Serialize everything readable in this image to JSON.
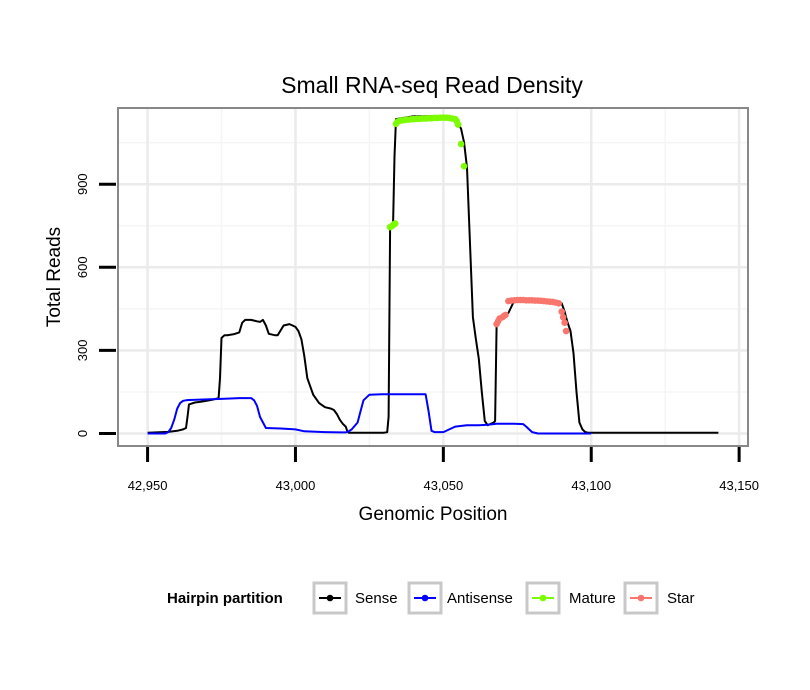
{
  "chart_data": {
    "type": "line",
    "title": "Small RNA-seq Read Density",
    "xlabel": "Genomic Position",
    "ylabel": "Total Reads",
    "xlim": [
      42940,
      43153
    ],
    "ylim": [
      -45,
      1175
    ],
    "xticks": [
      42950,
      43000,
      43050,
      43100,
      43150
    ],
    "xtick_labels": [
      "42,950",
      "43,000",
      "43,050",
      "43,100",
      "43,150"
    ],
    "yticks": [
      0,
      300,
      600,
      900
    ],
    "ytick_labels": [
      "0",
      "300",
      "600",
      "900"
    ],
    "grid": true,
    "legend": {
      "title": "Hairpin partition",
      "position": "bottom",
      "entries": [
        "Sense",
        "Antisense",
        "Mature",
        "Star"
      ]
    },
    "colors": {
      "Sense": "#000000",
      "Antisense": "#0000ff",
      "Mature": "#7cfc00",
      "Star": "#f8766d",
      "panel_border": "#888888",
      "grid": "#ebebeb"
    },
    "series": [
      {
        "name": "Sense",
        "type": "line",
        "x": [
          42950,
          42953,
          42957,
          42960,
          42962,
          42963,
          42963.5,
          42964,
          42966,
          42968,
          42970,
          42972,
          42974,
          42974.5,
          42975,
          42976,
          42977,
          42979,
          42981,
          42982,
          42983,
          42985,
          42987,
          42988,
          42989,
          42990,
          42991,
          42993,
          42994,
          42996,
          42998,
          42999,
          43000,
          43001,
          43002,
          43003,
          43004,
          43006,
          43008,
          43010,
          43012,
          43013,
          43014,
          43015,
          43016,
          43017,
          43017.5,
          43018,
          43020,
          43025,
          43030,
          43031,
          43031.5,
          43032,
          43032.5,
          43033,
          43033.5,
          43034,
          43040,
          43045,
          43050,
          43054,
          43056,
          43057,
          43058,
          43060,
          43061,
          43062,
          43063,
          43064,
          43065,
          43067,
          43067.5,
          43068,
          43070,
          43072,
          43074,
          43080,
          43085,
          43090,
          43091,
          43092,
          43093,
          43094,
          43095,
          43096,
          43097,
          43098,
          43099,
          43100,
          43110,
          43120,
          43130,
          43143
        ],
        "y": [
          3,
          4,
          6,
          10,
          15,
          20,
          60,
          105,
          112,
          115,
          118,
          122,
          128,
          200,
          345,
          355,
          355,
          358,
          365,
          400,
          410,
          410,
          405,
          403,
          410,
          390,
          360,
          355,
          355,
          390,
          395,
          390,
          385,
          370,
          340,
          280,
          200,
          140,
          110,
          95,
          90,
          85,
          70,
          50,
          35,
          25,
          10,
          3,
          3,
          3,
          3,
          5,
          60,
          740,
          752,
          760,
          1000,
          1135,
          1145,
          1145,
          1145,
          1138,
          1100,
          1050,
          960,
          420,
          340,
          270,
          150,
          45,
          30,
          40,
          45,
          390,
          425,
          435,
          480,
          480,
          478,
          470,
          440,
          400,
          370,
          290,
          150,
          40,
          15,
          5,
          3,
          3,
          3,
          3,
          3,
          3
        ]
      },
      {
        "name": "Antisense",
        "type": "line",
        "x": [
          42950,
          42956,
          42957,
          42958,
          42959,
          42960,
          42961,
          42962,
          42963,
          42964,
          42975,
          42981,
          42983,
          42985,
          42986,
          42987,
          42988,
          42990,
          42995,
          43000,
          43003,
          43010,
          43015,
          43017,
          43018,
          43019,
          43021,
          43022,
          43023,
          43025,
          43030,
          43035,
          43043,
          43044,
          43045,
          43046,
          43047,
          43050,
          43052,
          43054,
          43058,
          43060,
          43062,
          43065,
          43068,
          43074,
          43077,
          43078,
          43080,
          43082,
          43085,
          43090,
          43095,
          43100
        ],
        "y": [
          0,
          0,
          5,
          20,
          50,
          90,
          110,
          118,
          120,
          121,
          125,
          128,
          128,
          128,
          120,
          100,
          60,
          20,
          18,
          15,
          8,
          5,
          4,
          4,
          8,
          15,
          40,
          80,
          120,
          140,
          142,
          142,
          142,
          142,
          80,
          10,
          5,
          5,
          15,
          25,
          30,
          30,
          30,
          32,
          35,
          35,
          34,
          25,
          5,
          0,
          0,
          0,
          0,
          0
        ]
      },
      {
        "name": "Mature",
        "type": "points",
        "x": [
          43032,
          43032.5,
          43033,
          43033.3,
          43033.7,
          43034,
          43034.5,
          43035,
          43036,
          43037,
          43038,
          43039,
          43040,
          43041,
          43042,
          43043,
          43044,
          43045,
          43046,
          43047,
          43048,
          43049,
          43050,
          43051,
          43052,
          43053,
          43054,
          43054.5,
          43055,
          43056,
          43057
        ],
        "y": [
          745,
          748,
          752,
          755,
          758,
          1118,
          1125,
          1128,
          1130,
          1132,
          1133,
          1134,
          1135,
          1136,
          1136,
          1137,
          1137,
          1138,
          1138,
          1139,
          1139,
          1140,
          1140,
          1140,
          1139,
          1137,
          1135,
          1128,
          1115,
          1045,
          965
        ]
      },
      {
        "name": "Star",
        "type": "points",
        "x": [
          43068,
          43068.5,
          43069,
          43070,
          43070.5,
          43071,
          43072,
          43073,
          43074,
          43075,
          43076,
          43077,
          43078,
          43079,
          43080,
          43081,
          43082,
          43083,
          43084,
          43085,
          43086,
          43087,
          43088,
          43089,
          43090,
          43090.5,
          43091,
          43091.5
        ],
        "y": [
          395,
          405,
          415,
          420,
          425,
          428,
          478,
          480,
          481,
          482,
          482,
          482,
          481,
          481,
          481,
          480,
          480,
          479,
          478,
          477,
          476,
          475,
          473,
          470,
          440,
          420,
          400,
          370
        ]
      }
    ]
  }
}
